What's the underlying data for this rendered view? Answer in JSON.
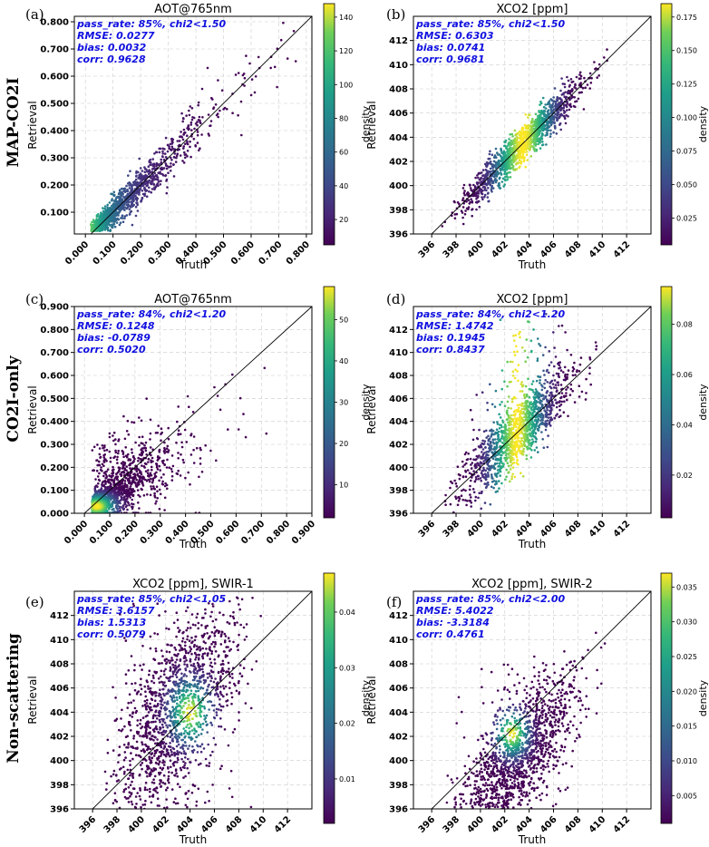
{
  "row_labels": [
    "MAP-CO2I",
    "CO2I-only",
    "Non-scattering"
  ],
  "chart_data": [
    {
      "type": "scatter",
      "panel_label": "(a)",
      "title": "AOT@765nm",
      "xlabel": "Truth",
      "ylabel": "Retrieval",
      "xlim": [
        -0.04,
        0.82
      ],
      "ylim": [
        0.02,
        0.82
      ],
      "xticks": [
        0.0,
        0.1,
        0.2,
        0.3,
        0.4,
        0.5,
        0.6,
        0.7,
        0.8
      ],
      "xtick_labels": [
        "0.000",
        "0.100",
        "0.200",
        "0.300",
        "0.400",
        "0.500",
        "0.600",
        "0.700",
        "0.800"
      ],
      "yticks": [
        0.1,
        0.2,
        0.3,
        0.4,
        0.5,
        0.6,
        0.7,
        0.8
      ],
      "ytick_labels": [
        "0.100",
        "0.200",
        "0.300",
        "0.400",
        "0.500",
        "0.600",
        "0.700",
        "0.800"
      ],
      "stats": [
        "pass_rate: 85%, chi2<1.50",
        "RMSE: 0.0277",
        "bias: 0.0032",
        "corr: 0.9628"
      ],
      "colorbar": {
        "label": "density",
        "ticks": [
          20,
          40,
          60,
          80,
          100,
          120,
          140
        ],
        "tick_labels": [
          "20",
          "40",
          "60",
          "80",
          "100",
          "120",
          "140"
        ],
        "range": [
          5,
          148
        ]
      },
      "one_to_one": true
    },
    {
      "type": "scatter",
      "panel_label": "(b)",
      "title": "XCO2 [ppm]",
      "xlabel": "Truth",
      "ylabel": "Retrieval",
      "xlim": [
        394.5,
        414
      ],
      "ylim": [
        396,
        414
      ],
      "xticks": [
        396,
        398,
        400,
        402,
        404,
        406,
        408,
        410,
        412
      ],
      "xtick_labels": [
        "396",
        "398",
        "400",
        "402",
        "404",
        "406",
        "408",
        "410",
        "412"
      ],
      "yticks": [
        396,
        398,
        400,
        402,
        404,
        406,
        408,
        410,
        412
      ],
      "ytick_labels": [
        "396",
        "398",
        "400",
        "402",
        "404",
        "406",
        "408",
        "410",
        "412"
      ],
      "stats": [
        "pass_rate: 85%, chi2<1.50",
        "RMSE: 0.6303",
        "bias: 0.0741",
        "corr: 0.9681"
      ],
      "colorbar": {
        "label": "density",
        "ticks": [
          0.025,
          0.05,
          0.075,
          0.1,
          0.125,
          0.15,
          0.175
        ],
        "tick_labels": [
          "0.025",
          "0.050",
          "0.075",
          "0.100",
          "0.125",
          "0.150",
          "0.175"
        ],
        "range": [
          0.005,
          0.185
        ]
      },
      "one_to_one": true
    },
    {
      "type": "scatter",
      "panel_label": "(c)",
      "title": "AOT@765nm",
      "xlabel": "Truth",
      "ylabel": "Retrieval",
      "xlim": [
        -0.04,
        0.9
      ],
      "ylim": [
        0.0,
        0.9
      ],
      "xticks": [
        0.0,
        0.1,
        0.2,
        0.3,
        0.4,
        0.5,
        0.6,
        0.7,
        0.8,
        0.9
      ],
      "xtick_labels": [
        "0.000",
        "0.100",
        "0.200",
        "0.300",
        "0.400",
        "0.500",
        "0.600",
        "0.700",
        "0.800",
        "0.900"
      ],
      "yticks": [
        0.0,
        0.1,
        0.2,
        0.3,
        0.4,
        0.5,
        0.6,
        0.7,
        0.8,
        0.9
      ],
      "ytick_labels": [
        "0.000",
        "0.100",
        "0.200",
        "0.300",
        "0.400",
        "0.500",
        "0.600",
        "0.700",
        "0.800",
        "0.900"
      ],
      "stats": [
        "pass_rate: 84%, chi2<1.20",
        "RMSE: 0.1248",
        "bias: -0.0789",
        "corr: 0.5020"
      ],
      "colorbar": {
        "label": "density",
        "ticks": [
          10,
          20,
          30,
          40,
          50
        ],
        "tick_labels": [
          "10",
          "20",
          "30",
          "40",
          "50"
        ],
        "range": [
          2,
          58
        ]
      },
      "one_to_one": true
    },
    {
      "type": "scatter",
      "panel_label": "(d)",
      "title": "XCO2 [ppm]",
      "xlabel": "Truth",
      "ylabel": "Retrieval",
      "xlim": [
        394.5,
        414
      ],
      "ylim": [
        396,
        414
      ],
      "xticks": [
        396,
        398,
        400,
        402,
        404,
        406,
        408,
        410,
        412
      ],
      "xtick_labels": [
        "396",
        "398",
        "400",
        "402",
        "404",
        "406",
        "408",
        "410",
        "412"
      ],
      "yticks": [
        396,
        398,
        400,
        402,
        404,
        406,
        408,
        410,
        412
      ],
      "ytick_labels": [
        "396",
        "398",
        "400",
        "402",
        "404",
        "406",
        "408",
        "410",
        "412"
      ],
      "stats": [
        "pass_rate: 84%, chi2<1.20",
        "RMSE: 1.4742",
        "bias: 0.1945",
        "corr: 0.8437"
      ],
      "colorbar": {
        "label": "density",
        "ticks": [
          0.02,
          0.04,
          0.06,
          0.08
        ],
        "tick_labels": [
          "0.02",
          "0.04",
          "0.06",
          "0.08"
        ],
        "range": [
          0.003,
          0.095
        ]
      },
      "one_to_one": true
    },
    {
      "type": "scatter",
      "panel_label": "(e)",
      "title": "XCO2 [ppm], SWIR-1",
      "xlabel": "Truth",
      "ylabel": "Retrieval",
      "xlim": [
        394.5,
        414
      ],
      "ylim": [
        396,
        414
      ],
      "xticks": [
        396,
        398,
        400,
        402,
        404,
        406,
        408,
        410,
        412
      ],
      "xtick_labels": [
        "396",
        "398",
        "400",
        "402",
        "404",
        "406",
        "408",
        "410",
        "412"
      ],
      "yticks": [
        396,
        398,
        400,
        402,
        404,
        406,
        408,
        410,
        412
      ],
      "ytick_labels": [
        "396",
        "398",
        "400",
        "402",
        "404",
        "406",
        "408",
        "410",
        "412"
      ],
      "stats": [
        "pass_rate: 85%, chi2<1.05",
        "RMSE: 3.6157",
        "bias: 1.5313",
        "corr: 0.5079"
      ],
      "colorbar": {
        "label": "density",
        "ticks": [
          0.01,
          0.02,
          0.03,
          0.04
        ],
        "tick_labels": [
          "0.01",
          "0.02",
          "0.03",
          "0.04"
        ],
        "range": [
          0.002,
          0.047
        ]
      },
      "one_to_one": true
    },
    {
      "type": "scatter",
      "panel_label": "(f)",
      "title": "XCO2 [ppm], SWIR-2",
      "xlabel": "Truth",
      "ylabel": "Retrieval",
      "xlim": [
        394.5,
        414
      ],
      "ylim": [
        396,
        414
      ],
      "xticks": [
        396,
        398,
        400,
        402,
        404,
        406,
        408,
        410,
        412
      ],
      "xtick_labels": [
        "396",
        "398",
        "400",
        "402",
        "404",
        "406",
        "408",
        "410",
        "412"
      ],
      "yticks": [
        396,
        398,
        400,
        402,
        404,
        406,
        408,
        410,
        412
      ],
      "ytick_labels": [
        "396",
        "398",
        "400",
        "402",
        "404",
        "406",
        "408",
        "410",
        "412"
      ],
      "stats": [
        "pass_rate: 85%, chi2<2.00",
        "RMSE: 5.4022",
        "bias: -3.3184",
        "corr: 0.4761"
      ],
      "colorbar": {
        "label": "density",
        "ticks": [
          0.005,
          0.01,
          0.015,
          0.02,
          0.025,
          0.03,
          0.035
        ],
        "tick_labels": [
          "0.005",
          "0.010",
          "0.015",
          "0.020",
          "0.025",
          "0.030",
          "0.035"
        ],
        "range": [
          0.001,
          0.037
        ]
      },
      "one_to_one": true
    }
  ]
}
